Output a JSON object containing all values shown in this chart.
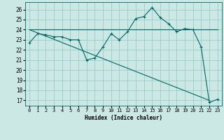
{
  "xlabel": "Humidex (Indice chaleur)",
  "bg_color": "#cce8e4",
  "grid_color": "#99cccc",
  "line_color": "#006666",
  "xlim": [
    -0.5,
    23.5
  ],
  "ylim": [
    16.5,
    26.7
  ],
  "yticks": [
    17,
    18,
    19,
    20,
    21,
    22,
    23,
    24,
    25,
    26
  ],
  "xticks": [
    0,
    1,
    2,
    3,
    4,
    5,
    6,
    7,
    8,
    9,
    10,
    11,
    12,
    13,
    14,
    15,
    16,
    17,
    18,
    19,
    20,
    21,
    22,
    23
  ],
  "series1_x": [
    0,
    1,
    2,
    3,
    4,
    5,
    6,
    7,
    8,
    9,
    10,
    11,
    12,
    13,
    14,
    15,
    16,
    17,
    18,
    19,
    20,
    21,
    22,
    23
  ],
  "series1_y": [
    22.7,
    23.6,
    23.5,
    23.3,
    23.3,
    23.0,
    23.0,
    21.0,
    21.2,
    22.3,
    23.6,
    23.0,
    23.8,
    25.1,
    25.3,
    26.2,
    25.2,
    24.6,
    23.8,
    24.1,
    24.0,
    22.3,
    16.8,
    17.1
  ],
  "series2_x": [
    0,
    23
  ],
  "series2_y": [
    24.0,
    24.0
  ],
  "series3_x": [
    0,
    22
  ],
  "series3_y": [
    24.0,
    17.0
  ]
}
